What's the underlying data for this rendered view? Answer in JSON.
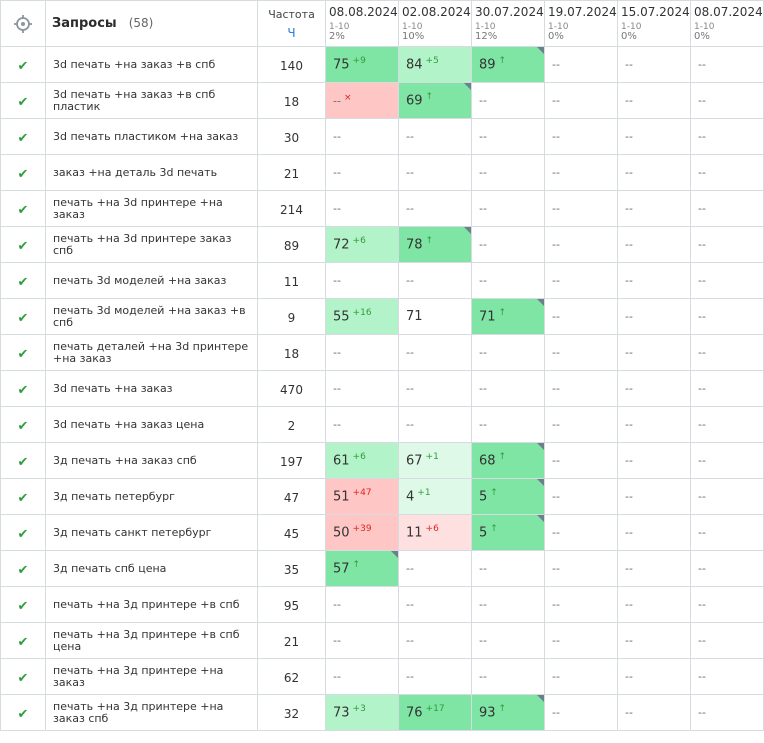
{
  "header": {
    "query_title": "Запросы",
    "query_count": "(58)",
    "freq_title": "Частота",
    "freq_mode": "Ч",
    "dates": [
      {
        "date": "08.08.2024",
        "range": "1-10",
        "pct": "2%"
      },
      {
        "date": "02.08.2024",
        "range": "1-10",
        "pct": "10%"
      },
      {
        "date": "30.07.2024",
        "range": "1-10",
        "pct": "12%"
      },
      {
        "date": "19.07.2024",
        "range": "1-10",
        "pct": "0%"
      },
      {
        "date": "15.07.2024",
        "range": "1-10",
        "pct": "0%"
      },
      {
        "date": "08.07.2024",
        "range": "1-10",
        "pct": "0%"
      }
    ]
  },
  "icons": {
    "header": "target-icon",
    "row": "checkmark-icon",
    "check_glyph": "✔"
  },
  "colors": {
    "green_strong": "#7fe5a4",
    "green_mid": "#b3f3c9",
    "green_light": "#def9e7",
    "red": "#ffc6c6",
    "red_light": "#ffe0e0",
    "delta_up": "#2e9d3a",
    "delta_down": "#e02424"
  },
  "rows": [
    {
      "query": "3d печать +на заказ +в спб",
      "freq": "140",
      "pos": [
        {
          "v": "75",
          "d": "+9",
          "dt": "up",
          "bg": "g1"
        },
        {
          "v": "84",
          "d": "+5",
          "dt": "up",
          "bg": "g2"
        },
        {
          "v": "89",
          "d": "↑",
          "dt": "up",
          "bg": "g1",
          "c": true
        },
        {
          "v": "--"
        },
        {
          "v": "--"
        },
        {
          "v": "--"
        }
      ]
    },
    {
      "query": "3d печать +на заказ +в спб пластик",
      "freq": "18",
      "pos": [
        {
          "v": "--",
          "d": "×",
          "dt": "down",
          "bg": "r1"
        },
        {
          "v": "69",
          "d": "↑",
          "dt": "up",
          "bg": "g1",
          "c": true
        },
        {
          "v": "--"
        },
        {
          "v": "--"
        },
        {
          "v": "--"
        },
        {
          "v": "--"
        }
      ]
    },
    {
      "query": "3d печать пластиком +на заказ",
      "freq": "30",
      "pos": [
        {
          "v": "--"
        },
        {
          "v": "--"
        },
        {
          "v": "--"
        },
        {
          "v": "--"
        },
        {
          "v": "--"
        },
        {
          "v": "--"
        }
      ]
    },
    {
      "query": "заказ +на деталь 3d печать",
      "freq": "21",
      "pos": [
        {
          "v": "--"
        },
        {
          "v": "--"
        },
        {
          "v": "--"
        },
        {
          "v": "--"
        },
        {
          "v": "--"
        },
        {
          "v": "--"
        }
      ]
    },
    {
      "query": "печать +на 3d принтере +на заказ",
      "freq": "214",
      "pos": [
        {
          "v": "--"
        },
        {
          "v": "--"
        },
        {
          "v": "--"
        },
        {
          "v": "--"
        },
        {
          "v": "--"
        },
        {
          "v": "--"
        }
      ]
    },
    {
      "query": "печать +на 3d принтере заказ спб",
      "freq": "89",
      "pos": [
        {
          "v": "72",
          "d": "+6",
          "dt": "up",
          "bg": "g2"
        },
        {
          "v": "78",
          "d": "↑",
          "dt": "up",
          "bg": "g1",
          "c": true
        },
        {
          "v": "--"
        },
        {
          "v": "--"
        },
        {
          "v": "--"
        },
        {
          "v": "--"
        }
      ]
    },
    {
      "query": "печать 3d моделей +на заказ",
      "freq": "11",
      "pos": [
        {
          "v": "--"
        },
        {
          "v": "--"
        },
        {
          "v": "--"
        },
        {
          "v": "--"
        },
        {
          "v": "--"
        },
        {
          "v": "--"
        }
      ]
    },
    {
      "query": "печать 3d моделей +на заказ +в спб",
      "freq": "9",
      "pos": [
        {
          "v": "55",
          "d": "+16",
          "dt": "up",
          "bg": "g2"
        },
        {
          "v": "71"
        },
        {
          "v": "71",
          "d": "↑",
          "dt": "up",
          "bg": "g1",
          "c": true
        },
        {
          "v": "--"
        },
        {
          "v": "--"
        },
        {
          "v": "--"
        }
      ]
    },
    {
      "query": "печать деталей +на 3d принтере +на заказ",
      "freq": "18",
      "pos": [
        {
          "v": "--"
        },
        {
          "v": "--"
        },
        {
          "v": "--"
        },
        {
          "v": "--"
        },
        {
          "v": "--"
        },
        {
          "v": "--"
        }
      ]
    },
    {
      "query": "3d печать +на заказ",
      "freq": "470",
      "pos": [
        {
          "v": "--"
        },
        {
          "v": "--"
        },
        {
          "v": "--"
        },
        {
          "v": "--"
        },
        {
          "v": "--"
        },
        {
          "v": "--"
        }
      ]
    },
    {
      "query": "3d печать +на заказ цена",
      "freq": "2",
      "pos": [
        {
          "v": "--"
        },
        {
          "v": "--"
        },
        {
          "v": "--"
        },
        {
          "v": "--"
        },
        {
          "v": "--"
        },
        {
          "v": "--"
        }
      ]
    },
    {
      "query": "3д печать +на заказ спб",
      "freq": "197",
      "pos": [
        {
          "v": "61",
          "d": "+6",
          "dt": "up",
          "bg": "g2"
        },
        {
          "v": "67",
          "d": "+1",
          "dt": "up",
          "bg": "g3"
        },
        {
          "v": "68",
          "d": "↑",
          "dt": "up",
          "bg": "g1",
          "c": true
        },
        {
          "v": "--"
        },
        {
          "v": "--"
        },
        {
          "v": "--"
        }
      ]
    },
    {
      "query": "3д печать петербург",
      "freq": "47",
      "pos": [
        {
          "v": "51",
          "d": "+47",
          "dt": "down",
          "bg": "r1"
        },
        {
          "v": "4",
          "d": "+1",
          "dt": "up",
          "bg": "g3"
        },
        {
          "v": "5",
          "d": "↑",
          "dt": "up",
          "bg": "g1",
          "c": true
        },
        {
          "v": "--"
        },
        {
          "v": "--"
        },
        {
          "v": "--"
        }
      ]
    },
    {
      "query": "3д печать санкт петербург",
      "freq": "45",
      "pos": [
        {
          "v": "50",
          "d": "+39",
          "dt": "down",
          "bg": "r1"
        },
        {
          "v": "11",
          "d": "+6",
          "dt": "down",
          "bg": "r2"
        },
        {
          "v": "5",
          "d": "↑",
          "dt": "up",
          "bg": "g1",
          "c": true
        },
        {
          "v": "--"
        },
        {
          "v": "--"
        },
        {
          "v": "--"
        }
      ]
    },
    {
      "query": "3д печать спб цена",
      "freq": "35",
      "pos": [
        {
          "v": "57",
          "d": "↑",
          "dt": "up",
          "bg": "g1",
          "c": true
        },
        {
          "v": "--"
        },
        {
          "v": "--"
        },
        {
          "v": "--"
        },
        {
          "v": "--"
        },
        {
          "v": "--"
        }
      ]
    },
    {
      "query": "печать +на 3д принтере +в спб",
      "freq": "95",
      "pos": [
        {
          "v": "--"
        },
        {
          "v": "--"
        },
        {
          "v": "--"
        },
        {
          "v": "--"
        },
        {
          "v": "--"
        },
        {
          "v": "--"
        }
      ]
    },
    {
      "query": "печать +на 3д принтере +в спб цена",
      "freq": "21",
      "pos": [
        {
          "v": "--"
        },
        {
          "v": "--"
        },
        {
          "v": "--"
        },
        {
          "v": "--"
        },
        {
          "v": "--"
        },
        {
          "v": "--"
        }
      ]
    },
    {
      "query": "печать +на 3д принтере +на заказ",
      "freq": "62",
      "pos": [
        {
          "v": "--"
        },
        {
          "v": "--"
        },
        {
          "v": "--"
        },
        {
          "v": "--"
        },
        {
          "v": "--"
        },
        {
          "v": "--"
        }
      ]
    },
    {
      "query": "печать +на 3д принтере +на заказ спб",
      "freq": "32",
      "pos": [
        {
          "v": "73",
          "d": "+3",
          "dt": "up",
          "bg": "g2"
        },
        {
          "v": "76",
          "d": "+17",
          "dt": "up",
          "bg": "g1"
        },
        {
          "v": "93",
          "d": "↑",
          "dt": "up",
          "bg": "g1",
          "c": true
        },
        {
          "v": "--"
        },
        {
          "v": "--"
        },
        {
          "v": "--"
        }
      ]
    }
  ]
}
